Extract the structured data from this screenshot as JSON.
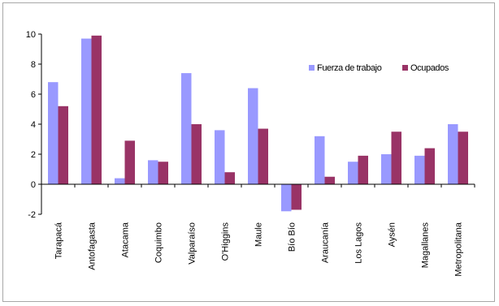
{
  "chart_data": {
    "type": "bar",
    "title": "",
    "xlabel": "",
    "ylabel": "",
    "ylim": [
      -2,
      10
    ],
    "yticks": [
      -2,
      0,
      2,
      4,
      6,
      8,
      10
    ],
    "grid": false,
    "legend_position": "top-right",
    "categories": [
      "Tarapacá",
      "Antofagasta",
      "Atacama",
      "Coquimbo",
      "Valparaíso",
      "O'Higgins",
      "Maule",
      "Bío Bío",
      "Araucanía",
      "Los Lagos",
      "Aysén",
      "Magallanes",
      "Metropolitana"
    ],
    "series": [
      {
        "name": "Fuerza de trabajo",
        "color": "#9999ff",
        "values": [
          6.8,
          9.7,
          0.4,
          1.6,
          7.4,
          3.6,
          6.4,
          -1.8,
          3.2,
          1.5,
          2.0,
          1.9,
          4.0
        ]
      },
      {
        "name": "Ocupados",
        "color": "#993366",
        "values": [
          5.2,
          9.9,
          2.9,
          1.5,
          4.0,
          0.8,
          3.7,
          -1.7,
          0.5,
          1.9,
          3.5,
          2.4,
          3.5
        ]
      }
    ]
  }
}
